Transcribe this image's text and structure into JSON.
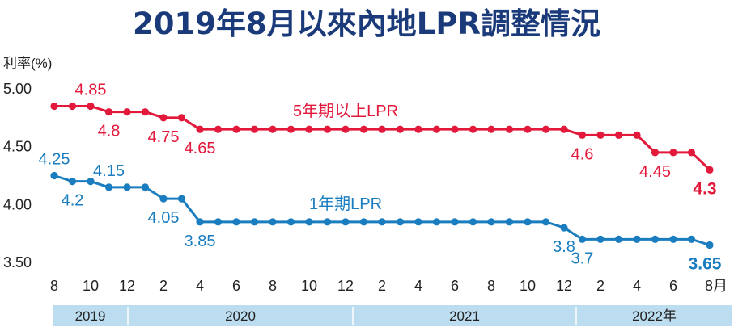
{
  "chart_data": {
    "type": "line",
    "title": "2019年8月以來內地LPR調整情況",
    "ylabel": "利率(%)",
    "ylim": [
      3.5,
      5.0
    ],
    "yticks": [
      "5.00",
      "4.50",
      "4.00",
      "3.50"
    ],
    "xticks": [
      "8",
      "10",
      "12",
      "2",
      "4",
      "6",
      "8",
      "10",
      "12",
      "2",
      "4",
      "6",
      "8",
      "10",
      "12",
      "2",
      "4",
      "6",
      "8月"
    ],
    "years": [
      {
        "label": "2019"
      },
      {
        "label": "2020"
      },
      {
        "label": "2021"
      },
      {
        "label": "2022年"
      }
    ],
    "series": [
      {
        "name": "5年期以上LPR",
        "color": "#e2193b",
        "values": [
          4.85,
          4.85,
          4.85,
          4.8,
          4.8,
          4.8,
          4.75,
          4.75,
          4.65,
          4.65,
          4.65,
          4.65,
          4.65,
          4.65,
          4.65,
          4.65,
          4.65,
          4.65,
          4.65,
          4.65,
          4.65,
          4.65,
          4.65,
          4.65,
          4.65,
          4.65,
          4.65,
          4.65,
          4.65,
          4.6,
          4.6,
          4.6,
          4.6,
          4.45,
          4.45,
          4.45,
          4.3
        ],
        "labels": [
          {
            "i": 2,
            "text": "4.85",
            "pos": "above"
          },
          {
            "i": 3,
            "text": "4.8",
            "pos": "below"
          },
          {
            "i": 6,
            "text": "4.75",
            "pos": "below"
          },
          {
            "i": 8,
            "text": "4.65",
            "pos": "below"
          },
          {
            "i": 29,
            "text": "4.6",
            "pos": "below"
          },
          {
            "i": 33,
            "text": "4.45",
            "pos": "below"
          },
          {
            "i": 36,
            "text": "4.3",
            "pos": "below",
            "bold": true
          }
        ],
        "name_index": 16
      },
      {
        "name": "1年期LPR",
        "color": "#1a7dbf",
        "values": [
          4.25,
          4.2,
          4.2,
          4.15,
          4.15,
          4.15,
          4.05,
          4.05,
          3.85,
          3.85,
          3.85,
          3.85,
          3.85,
          3.85,
          3.85,
          3.85,
          3.85,
          3.85,
          3.85,
          3.85,
          3.85,
          3.85,
          3.85,
          3.85,
          3.85,
          3.85,
          3.85,
          3.85,
          3.8,
          3.7,
          3.7,
          3.7,
          3.7,
          3.7,
          3.7,
          3.7,
          3.65
        ],
        "labels": [
          {
            "i": 0,
            "text": "4.25",
            "pos": "above"
          },
          {
            "i": 1,
            "text": "4.2",
            "pos": "below"
          },
          {
            "i": 3,
            "text": "4.15",
            "pos": "above"
          },
          {
            "i": 6,
            "text": "4.05",
            "pos": "below"
          },
          {
            "i": 8,
            "text": "3.85",
            "pos": "below"
          },
          {
            "i": 28,
            "text": "3.8",
            "pos": "below"
          },
          {
            "i": 29,
            "text": "3.7",
            "pos": "below"
          },
          {
            "i": 36,
            "text": "3.65",
            "pos": "below",
            "bold": true
          }
        ],
        "name_index": 16
      }
    ]
  }
}
